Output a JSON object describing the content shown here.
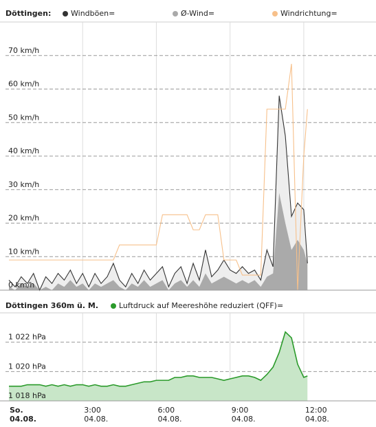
{
  "chart_data": [
    {
      "type": "line",
      "title": "Döttingen:",
      "x": [
        0,
        0.25,
        0.5,
        0.75,
        1,
        1.25,
        1.5,
        1.75,
        2,
        2.25,
        2.5,
        2.75,
        3,
        3.25,
        3.5,
        3.75,
        4,
        4.25,
        4.5,
        4.75,
        5,
        5.25,
        5.5,
        5.75,
        6,
        6.25,
        6.5,
        6.75,
        7,
        7.25,
        7.5,
        7.75,
        8,
        8.25,
        8.5,
        8.75,
        9,
        9.25,
        9.5,
        9.75,
        10,
        10.25,
        10.5,
        10.75,
        11,
        11.25,
        11.5,
        11.75,
        12,
        12.15
      ],
      "series": [
        {
          "name": "Windböen=",
          "color": "#333333",
          "fill": "#eeeeee",
          "values": [
            3,
            1,
            4,
            2,
            5,
            0,
            4,
            2,
            5,
            3,
            6,
            2,
            5,
            1,
            5,
            2,
            4,
            8,
            3,
            1,
            5,
            2,
            6,
            3,
            5,
            7,
            1,
            5,
            7,
            2,
            8,
            3,
            12,
            4,
            6,
            9,
            6,
            5,
            7,
            5,
            6,
            3,
            12,
            7,
            58,
            46,
            22,
            26,
            24,
            8
          ]
        },
        {
          "name": "Ø-Wind=",
          "color": "#aaaaaa",
          "fill": "#aaaaaa",
          "values": [
            1,
            0,
            2,
            1,
            2,
            0,
            1,
            0,
            2,
            1,
            3,
            1,
            2,
            0,
            2,
            1,
            2,
            3,
            1,
            0,
            2,
            1,
            3,
            1,
            2,
            3,
            0,
            2,
            3,
            1,
            3,
            1,
            5,
            2,
            3,
            4,
            3,
            2,
            3,
            2,
            3,
            1,
            4,
            5,
            29,
            20,
            12,
            15,
            12,
            8
          ]
        },
        {
          "name": "Windrichtung=",
          "color": "#f7c08a",
          "values": [
            9,
            9,
            9,
            9,
            9,
            9,
            9,
            9,
            9,
            9,
            9,
            9,
            9,
            9,
            9,
            9,
            9,
            9,
            13.5,
            13.5,
            13.5,
            13.5,
            13.5,
            13.5,
            13.5,
            22.5,
            22.5,
            22.5,
            22.5,
            22.5,
            18,
            18,
            22.5,
            22.5,
            22.5,
            9,
            9,
            9,
            4.5,
            4.5,
            4.5,
            4.5,
            54,
            54,
            54,
            54,
            67.5,
            0,
            40,
            54
          ]
        }
      ],
      "xlim": [
        -0.14,
        14.94
      ],
      "ylim": [
        0,
        80
      ],
      "yticks": [
        {
          "value": 0,
          "label": "0 km/h"
        },
        {
          "value": 10,
          "label": "10 km/h"
        },
        {
          "value": 20,
          "label": "20 km/h"
        },
        {
          "value": 30,
          "label": "30 km/h"
        },
        {
          "value": 40,
          "label": "40 km/h"
        },
        {
          "value": 50,
          "label": "50 km/h"
        },
        {
          "value": 60,
          "label": "60 km/h"
        },
        {
          "value": 70,
          "label": "70 km/h"
        }
      ],
      "grid": true
    },
    {
      "type": "area",
      "title": "Döttingen 360m ü. M.",
      "x": [
        0,
        0.25,
        0.5,
        0.75,
        1,
        1.25,
        1.5,
        1.75,
        2,
        2.25,
        2.5,
        2.75,
        3,
        3.25,
        3.5,
        3.75,
        4,
        4.25,
        4.5,
        4.75,
        5,
        5.25,
        5.5,
        5.75,
        6,
        6.25,
        6.5,
        6.75,
        7,
        7.25,
        7.5,
        7.75,
        8,
        8.25,
        8.5,
        8.75,
        9,
        9.25,
        9.5,
        9.75,
        10,
        10.25,
        10.5,
        10.75,
        11,
        11.25,
        11.5,
        11.75,
        12,
        12.15
      ],
      "series": [
        {
          "name": "Luftdruck auf Meereshöhe reduziert (QFF)=",
          "color": "#2a9a2a",
          "fill": "#c8e6c8",
          "values": [
            1019.0,
            1019.0,
            1019.0,
            1019.1,
            1019.1,
            1019.1,
            1019.0,
            1019.1,
            1019.0,
            1019.1,
            1019.0,
            1019.1,
            1019.1,
            1019.0,
            1019.1,
            1019.0,
            1019.0,
            1019.1,
            1019.0,
            1019.0,
            1019.1,
            1019.2,
            1019.3,
            1019.3,
            1019.4,
            1019.4,
            1019.4,
            1019.6,
            1019.6,
            1019.7,
            1019.7,
            1019.6,
            1019.6,
            1019.6,
            1019.5,
            1019.4,
            1019.5,
            1019.6,
            1019.7,
            1019.7,
            1019.6,
            1019.4,
            1019.8,
            1020.3,
            1021.3,
            1022.7,
            1022.3,
            1020.5,
            1019.6,
            1019.7
          ]
        }
      ],
      "xlim": [
        -0.14,
        14.94
      ],
      "ylim": [
        1018,
        1024
      ],
      "yticks": [
        {
          "value": 1018,
          "label": "1 018 hPa"
        },
        {
          "value": 1020,
          "label": "1 020 hPa"
        },
        {
          "value": 1022,
          "label": "1 022 hPa"
        }
      ],
      "xticks": [
        {
          "value": 0,
          "label": "So.",
          "sublabel": "04.08."
        },
        {
          "value": 3,
          "label": "3:00",
          "sublabel": "04.08."
        },
        {
          "value": 6,
          "label": "6:00",
          "sublabel": "04.08."
        },
        {
          "value": 9,
          "label": "9:00",
          "sublabel": "04.08."
        },
        {
          "value": 12,
          "label": "12:00",
          "sublabel": "04.08."
        }
      ],
      "grid": true
    }
  ]
}
